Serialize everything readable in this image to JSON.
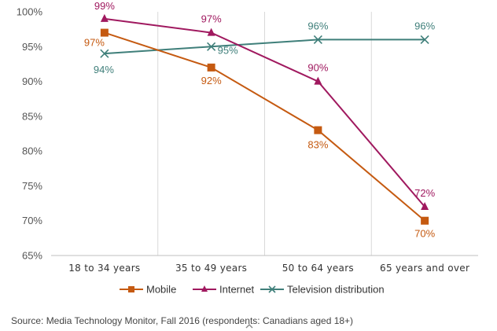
{
  "chart_data": {
    "type": "line",
    "title": "",
    "xlabel": "",
    "ylabel": "",
    "categories": [
      "18 to 34 years",
      "35 to 49 years",
      "50 to 64 years",
      "65 years and over"
    ],
    "ylim": [
      65,
      100
    ],
    "yticks": [
      65,
      70,
      75,
      80,
      85,
      90,
      95,
      100
    ],
    "ytick_labels": [
      "65%",
      "70%",
      "75%",
      "80%",
      "85%",
      "90%",
      "95%",
      "100%"
    ],
    "grid": "vertical",
    "legend_position": "bottom",
    "series": [
      {
        "name": "Mobile",
        "values": [
          97,
          92,
          83,
          70
        ],
        "labels": [
          "97%",
          "92%",
          "83%",
          "70%"
        ],
        "color": "#c55a11",
        "marker": "square"
      },
      {
        "name": "Internet",
        "values": [
          99,
          97,
          90,
          72
        ],
        "labels": [
          "99%",
          "97%",
          "90%",
          "72%"
        ],
        "color": "#a0195f",
        "marker": "triangle"
      },
      {
        "name": "Television distribution",
        "values": [
          94,
          95,
          96,
          96
        ],
        "labels": [
          "94%",
          "95%",
          "96%",
          "96%"
        ],
        "color": "#3f7f7a",
        "marker": "x"
      }
    ]
  },
  "source": "Source: Media Technology Monitor, Fall 2016 (respondents: Canadians aged 18+)",
  "scroll_icon": "chevron-up-icon"
}
